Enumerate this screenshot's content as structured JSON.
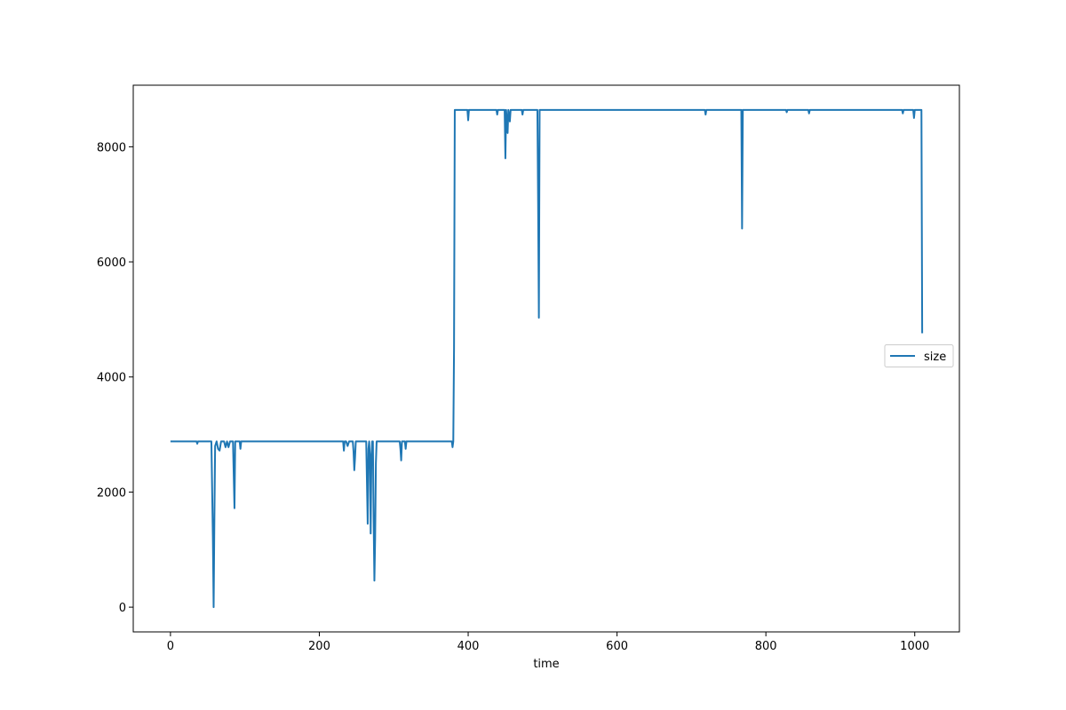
{
  "chart_data": {
    "type": "line",
    "title": "",
    "xlabel": "time",
    "ylabel": "",
    "xlim": [
      -50,
      1060
    ],
    "ylim": [
      -430,
      9070
    ],
    "xticks": [
      0,
      200,
      400,
      600,
      800,
      1000
    ],
    "yticks": [
      0,
      2000,
      4000,
      6000,
      8000
    ],
    "grid": false,
    "legend_position": "center-right",
    "series": [
      {
        "name": "size",
        "color": "#1f77b4",
        "points": [
          [
            0,
            2880
          ],
          [
            35,
            2880
          ],
          [
            36,
            2840
          ],
          [
            37,
            2880
          ],
          [
            55,
            2880
          ],
          [
            57,
            1200
          ],
          [
            58,
            0
          ],
          [
            59,
            1500
          ],
          [
            60,
            2800
          ],
          [
            62,
            2880
          ],
          [
            64,
            2750
          ],
          [
            66,
            2720
          ],
          [
            68,
            2880
          ],
          [
            72,
            2880
          ],
          [
            74,
            2780
          ],
          [
            76,
            2880
          ],
          [
            78,
            2780
          ],
          [
            80,
            2880
          ],
          [
            84,
            2880
          ],
          [
            86,
            1720
          ],
          [
            87,
            2880
          ],
          [
            93,
            2880
          ],
          [
            94,
            2750
          ],
          [
            95,
            2880
          ],
          [
            232,
            2880
          ],
          [
            233,
            2720
          ],
          [
            234,
            2880
          ],
          [
            236,
            2880
          ],
          [
            238,
            2800
          ],
          [
            240,
            2880
          ],
          [
            245,
            2880
          ],
          [
            246,
            2700
          ],
          [
            247,
            2380
          ],
          [
            248,
            2600
          ],
          [
            249,
            2880
          ],
          [
            263,
            2880
          ],
          [
            265,
            1450
          ],
          [
            266,
            2750
          ],
          [
            267,
            2880
          ],
          [
            268,
            2600
          ],
          [
            269,
            1280
          ],
          [
            270,
            2600
          ],
          [
            271,
            2880
          ],
          [
            272,
            2880
          ],
          [
            273,
            1500
          ],
          [
            274,
            460
          ],
          [
            275,
            1200
          ],
          [
            276,
            2500
          ],
          [
            277,
            2880
          ],
          [
            308,
            2880
          ],
          [
            309,
            2750
          ],
          [
            310,
            2550
          ],
          [
            311,
            2880
          ],
          [
            315,
            2880
          ],
          [
            316,
            2750
          ],
          [
            317,
            2880
          ],
          [
            378,
            2880
          ],
          [
            379,
            2780
          ],
          [
            380,
            2880
          ],
          [
            381,
            4500
          ],
          [
            382,
            8640
          ],
          [
            399,
            8640
          ],
          [
            400,
            8460
          ],
          [
            401,
            8640
          ],
          [
            438,
            8640
          ],
          [
            439,
            8560
          ],
          [
            440,
            8640
          ],
          [
            449,
            8640
          ],
          [
            450,
            7800
          ],
          [
            451,
            8640
          ],
          [
            453,
            8240
          ],
          [
            454,
            8640
          ],
          [
            456,
            8440
          ],
          [
            457,
            8640
          ],
          [
            472,
            8640
          ],
          [
            473,
            8560
          ],
          [
            474,
            8640
          ],
          [
            493,
            8640
          ],
          [
            494,
            7000
          ],
          [
            495,
            5030
          ],
          [
            496,
            8640
          ],
          [
            718,
            8640
          ],
          [
            719,
            8560
          ],
          [
            720,
            8640
          ],
          [
            767,
            8640
          ],
          [
            768,
            6580
          ],
          [
            769,
            8640
          ],
          [
            827,
            8640
          ],
          [
            828,
            8600
          ],
          [
            829,
            8640
          ],
          [
            857,
            8640
          ],
          [
            858,
            8580
          ],
          [
            859,
            8640
          ],
          [
            983,
            8640
          ],
          [
            984,
            8580
          ],
          [
            985,
            8640
          ],
          [
            998,
            8640
          ],
          [
            999,
            8500
          ],
          [
            1000,
            8640
          ],
          [
            1009,
            8640
          ],
          [
            1010,
            4760
          ]
        ]
      }
    ]
  }
}
